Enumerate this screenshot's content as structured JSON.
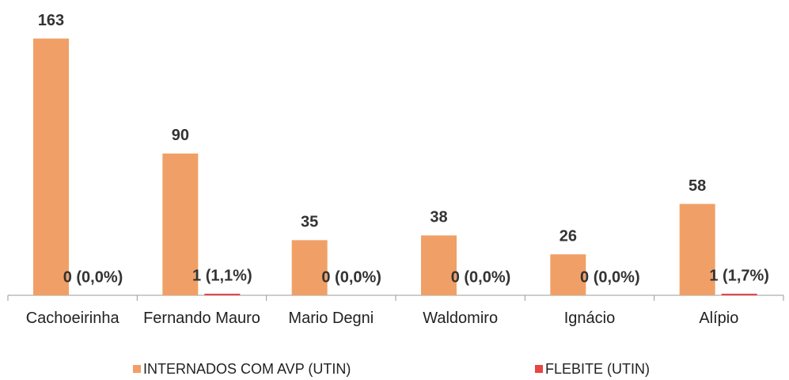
{
  "chart_data": {
    "type": "bar",
    "categories": [
      "Cachoeirinha",
      "Fernando Mauro",
      "Mario Degni",
      "Waldomiro",
      "Ignácio",
      "Alípio"
    ],
    "series": [
      {
        "name": "INTERNADOS COM AVP (UTIN)",
        "color": "#f0a066",
        "values": [
          163,
          90,
          35,
          38,
          26,
          58
        ]
      },
      {
        "name": "FLEBITE (UTIN)",
        "color": "#e84545",
        "values": [
          0,
          1,
          0,
          0,
          0,
          1
        ],
        "value_labels": [
          "0 (0,0%)",
          "1 (1,1%)",
          "0 (0,0%)",
          "0 (0,0%)",
          "0 (0,0%)",
          "1 (1,7%)"
        ]
      }
    ]
  }
}
